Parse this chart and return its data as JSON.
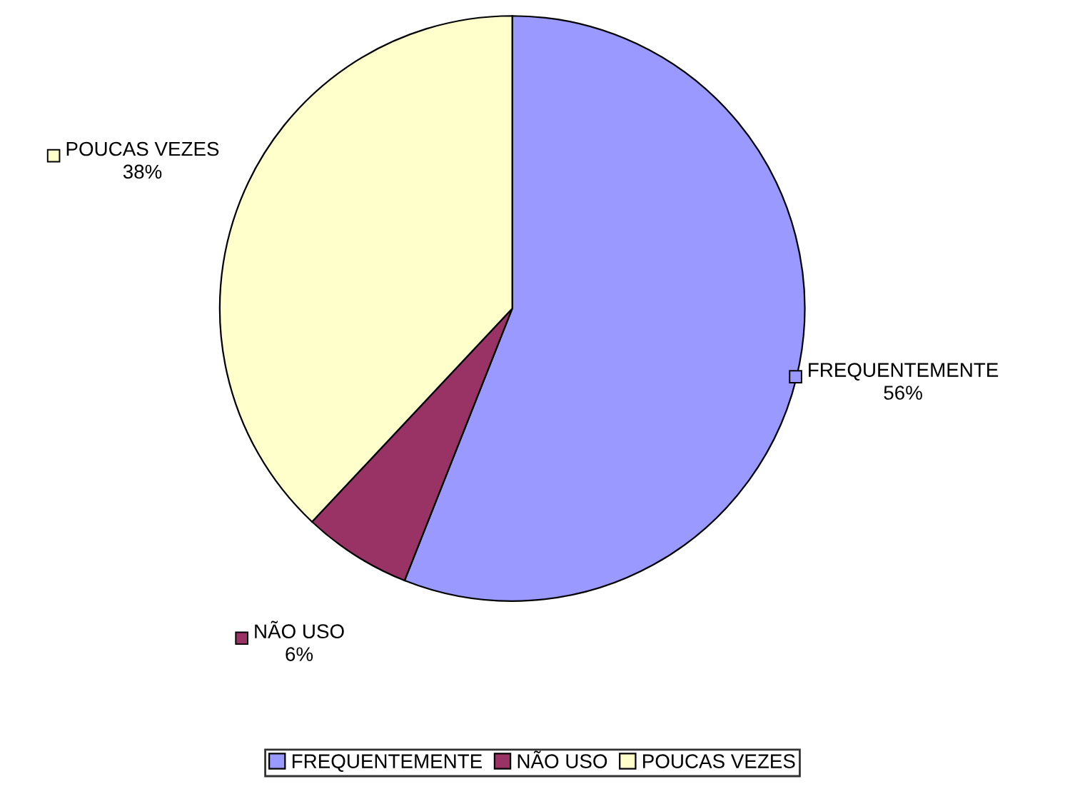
{
  "chart_data": {
    "type": "pie",
    "categories": [
      "FREQUENTEMENTE",
      "NÃO USO",
      "POUCAS VEZES"
    ],
    "values": [
      56,
      6,
      38
    ],
    "colors": [
      "#9999ff",
      "#993366",
      "#ffffcc"
    ],
    "value_labels": [
      "56%",
      "6%",
      "38%"
    ],
    "legend": "bottom"
  }
}
